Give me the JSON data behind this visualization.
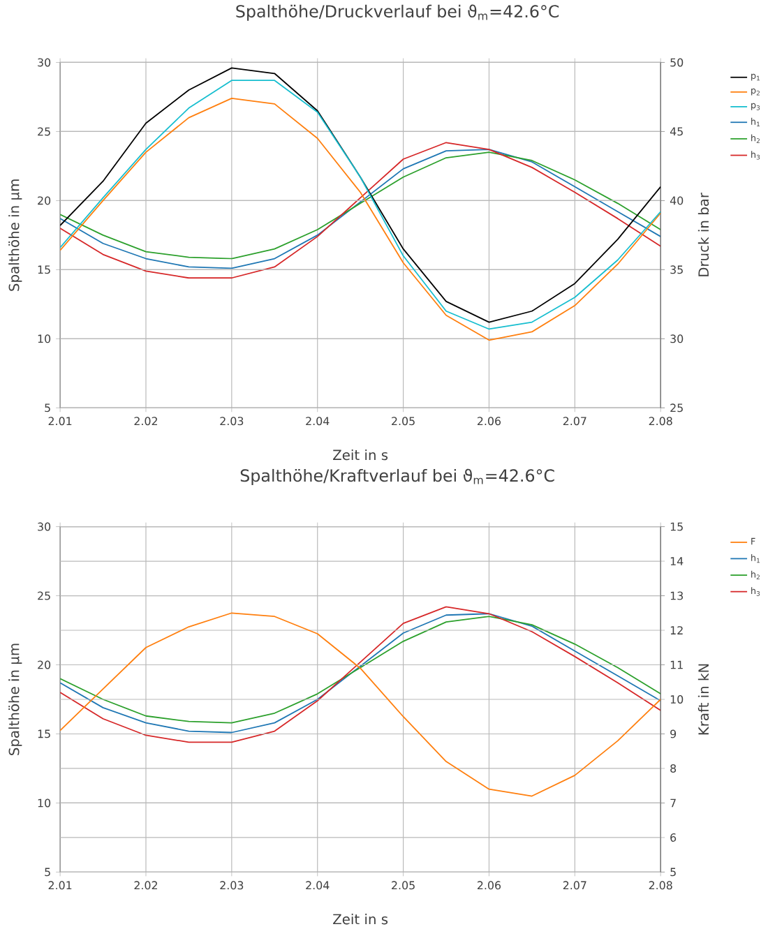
{
  "chart_data": [
    {
      "type": "line",
      "title": "Spalthöhe/Druckverlauf bei ϑ$_{m}$=42.6°C",
      "xlabel": "Zeit in s",
      "ylabel": "Spalthöhe in µm",
      "y2label": "Druck in bar",
      "grid": true,
      "legend": "right",
      "x": [
        2.01,
        2.015,
        2.02,
        2.025,
        2.03,
        2.035,
        2.04,
        2.045,
        2.05,
        2.055,
        2.06,
        2.065,
        2.07,
        2.075,
        2.08
      ],
      "xlim": [
        2.01,
        2.08
      ],
      "xticks": [
        2.01,
        2.02,
        2.03,
        2.04,
        2.05,
        2.06,
        2.07,
        2.08
      ],
      "ylim": [
        5,
        30
      ],
      "yticks": [
        5,
        10,
        15,
        20,
        25,
        30
      ],
      "y2lim": [
        25,
        50
      ],
      "y2ticks": [
        25,
        30,
        35,
        40,
        45,
        50
      ],
      "series": [
        {
          "name": "p$_{1}$",
          "color": "#000000",
          "axis": "y2",
          "values": [
            38.2,
            41.4,
            45.6,
            48.0,
            49.6,
            49.2,
            46.5,
            41.7,
            36.5,
            32.7,
            31.2,
            32.0,
            34.0,
            37.2,
            41.0
          ]
        },
        {
          "name": "p$_{2}$",
          "color": "#ff7f0e",
          "axis": "y2",
          "values": [
            36.4,
            40.0,
            43.5,
            46.0,
            47.4,
            47.0,
            44.5,
            40.6,
            35.5,
            31.7,
            29.9,
            30.5,
            32.4,
            35.4,
            39.1
          ]
        },
        {
          "name": "p$_{3}$",
          "color": "#17becf",
          "axis": "y2",
          "values": [
            36.6,
            40.2,
            43.7,
            46.7,
            48.7,
            48.7,
            46.4,
            41.7,
            36.0,
            32.0,
            30.7,
            31.2,
            33.0,
            35.7,
            39.2
          ]
        },
        {
          "name": "h$_{1}$",
          "color": "#1f77b4",
          "values": [
            18.7,
            16.9,
            15.8,
            15.2,
            15.1,
            15.8,
            17.5,
            19.9,
            22.3,
            23.6,
            23.7,
            22.8,
            21.0,
            19.2,
            17.4
          ]
        },
        {
          "name": "h$_{2}$",
          "color": "#2ca02c",
          "values": [
            19.0,
            17.5,
            16.3,
            15.9,
            15.8,
            16.5,
            17.9,
            19.8,
            21.7,
            23.1,
            23.5,
            22.9,
            21.5,
            19.8,
            17.9
          ]
        },
        {
          "name": "h$_{3}$",
          "color": "#d62728",
          "values": [
            18.0,
            16.1,
            14.9,
            14.4,
            14.4,
            15.2,
            17.4,
            20.2,
            23.0,
            24.2,
            23.7,
            22.4,
            20.6,
            18.7,
            16.7
          ]
        }
      ]
    },
    {
      "type": "line",
      "title": "Spalthöhe/Kraftverlauf bei ϑ$_{m}$=42.6°C",
      "xlabel": "Zeit in s",
      "ylabel": "Spalthöhe in µm",
      "y2label": "Kraft in kN",
      "grid": true,
      "legend": "right",
      "x": [
        2.01,
        2.015,
        2.02,
        2.025,
        2.03,
        2.035,
        2.04,
        2.045,
        2.05,
        2.055,
        2.06,
        2.065,
        2.07,
        2.075,
        2.08
      ],
      "xlim": [
        2.01,
        2.08
      ],
      "xticks": [
        2.01,
        2.02,
        2.03,
        2.04,
        2.05,
        2.06,
        2.07,
        2.08
      ],
      "ylim": [
        5,
        30
      ],
      "yticks": [
        5,
        10,
        15,
        20,
        25,
        30
      ],
      "y2lim": [
        5,
        15
      ],
      "y2ticks": [
        5,
        6,
        7,
        8,
        9,
        10,
        11,
        12,
        13,
        14,
        15
      ],
      "series": [
        {
          "name": "F",
          "color": "#ff7f0e",
          "axis": "y2",
          "values": [
            9.1,
            10.3,
            11.5,
            12.1,
            12.5,
            12.4,
            11.9,
            10.9,
            9.5,
            8.2,
            7.4,
            7.2,
            7.8,
            8.8,
            10.0
          ]
        },
        {
          "name": "h$_{1}$",
          "color": "#1f77b4",
          "values": [
            18.7,
            16.9,
            15.8,
            15.2,
            15.1,
            15.8,
            17.5,
            19.9,
            22.3,
            23.6,
            23.7,
            22.8,
            21.0,
            19.2,
            17.4
          ]
        },
        {
          "name": "h$_{2}$",
          "color": "#2ca02c",
          "values": [
            19.0,
            17.5,
            16.3,
            15.9,
            15.8,
            16.5,
            17.9,
            19.8,
            21.7,
            23.1,
            23.5,
            22.9,
            21.5,
            19.8,
            17.9
          ]
        },
        {
          "name": "h$_{3}$",
          "color": "#d62728",
          "values": [
            18.0,
            16.1,
            14.9,
            14.4,
            14.4,
            15.2,
            17.4,
            20.2,
            23.0,
            24.2,
            23.7,
            22.4,
            20.6,
            18.7,
            16.7
          ]
        }
      ]
    }
  ]
}
